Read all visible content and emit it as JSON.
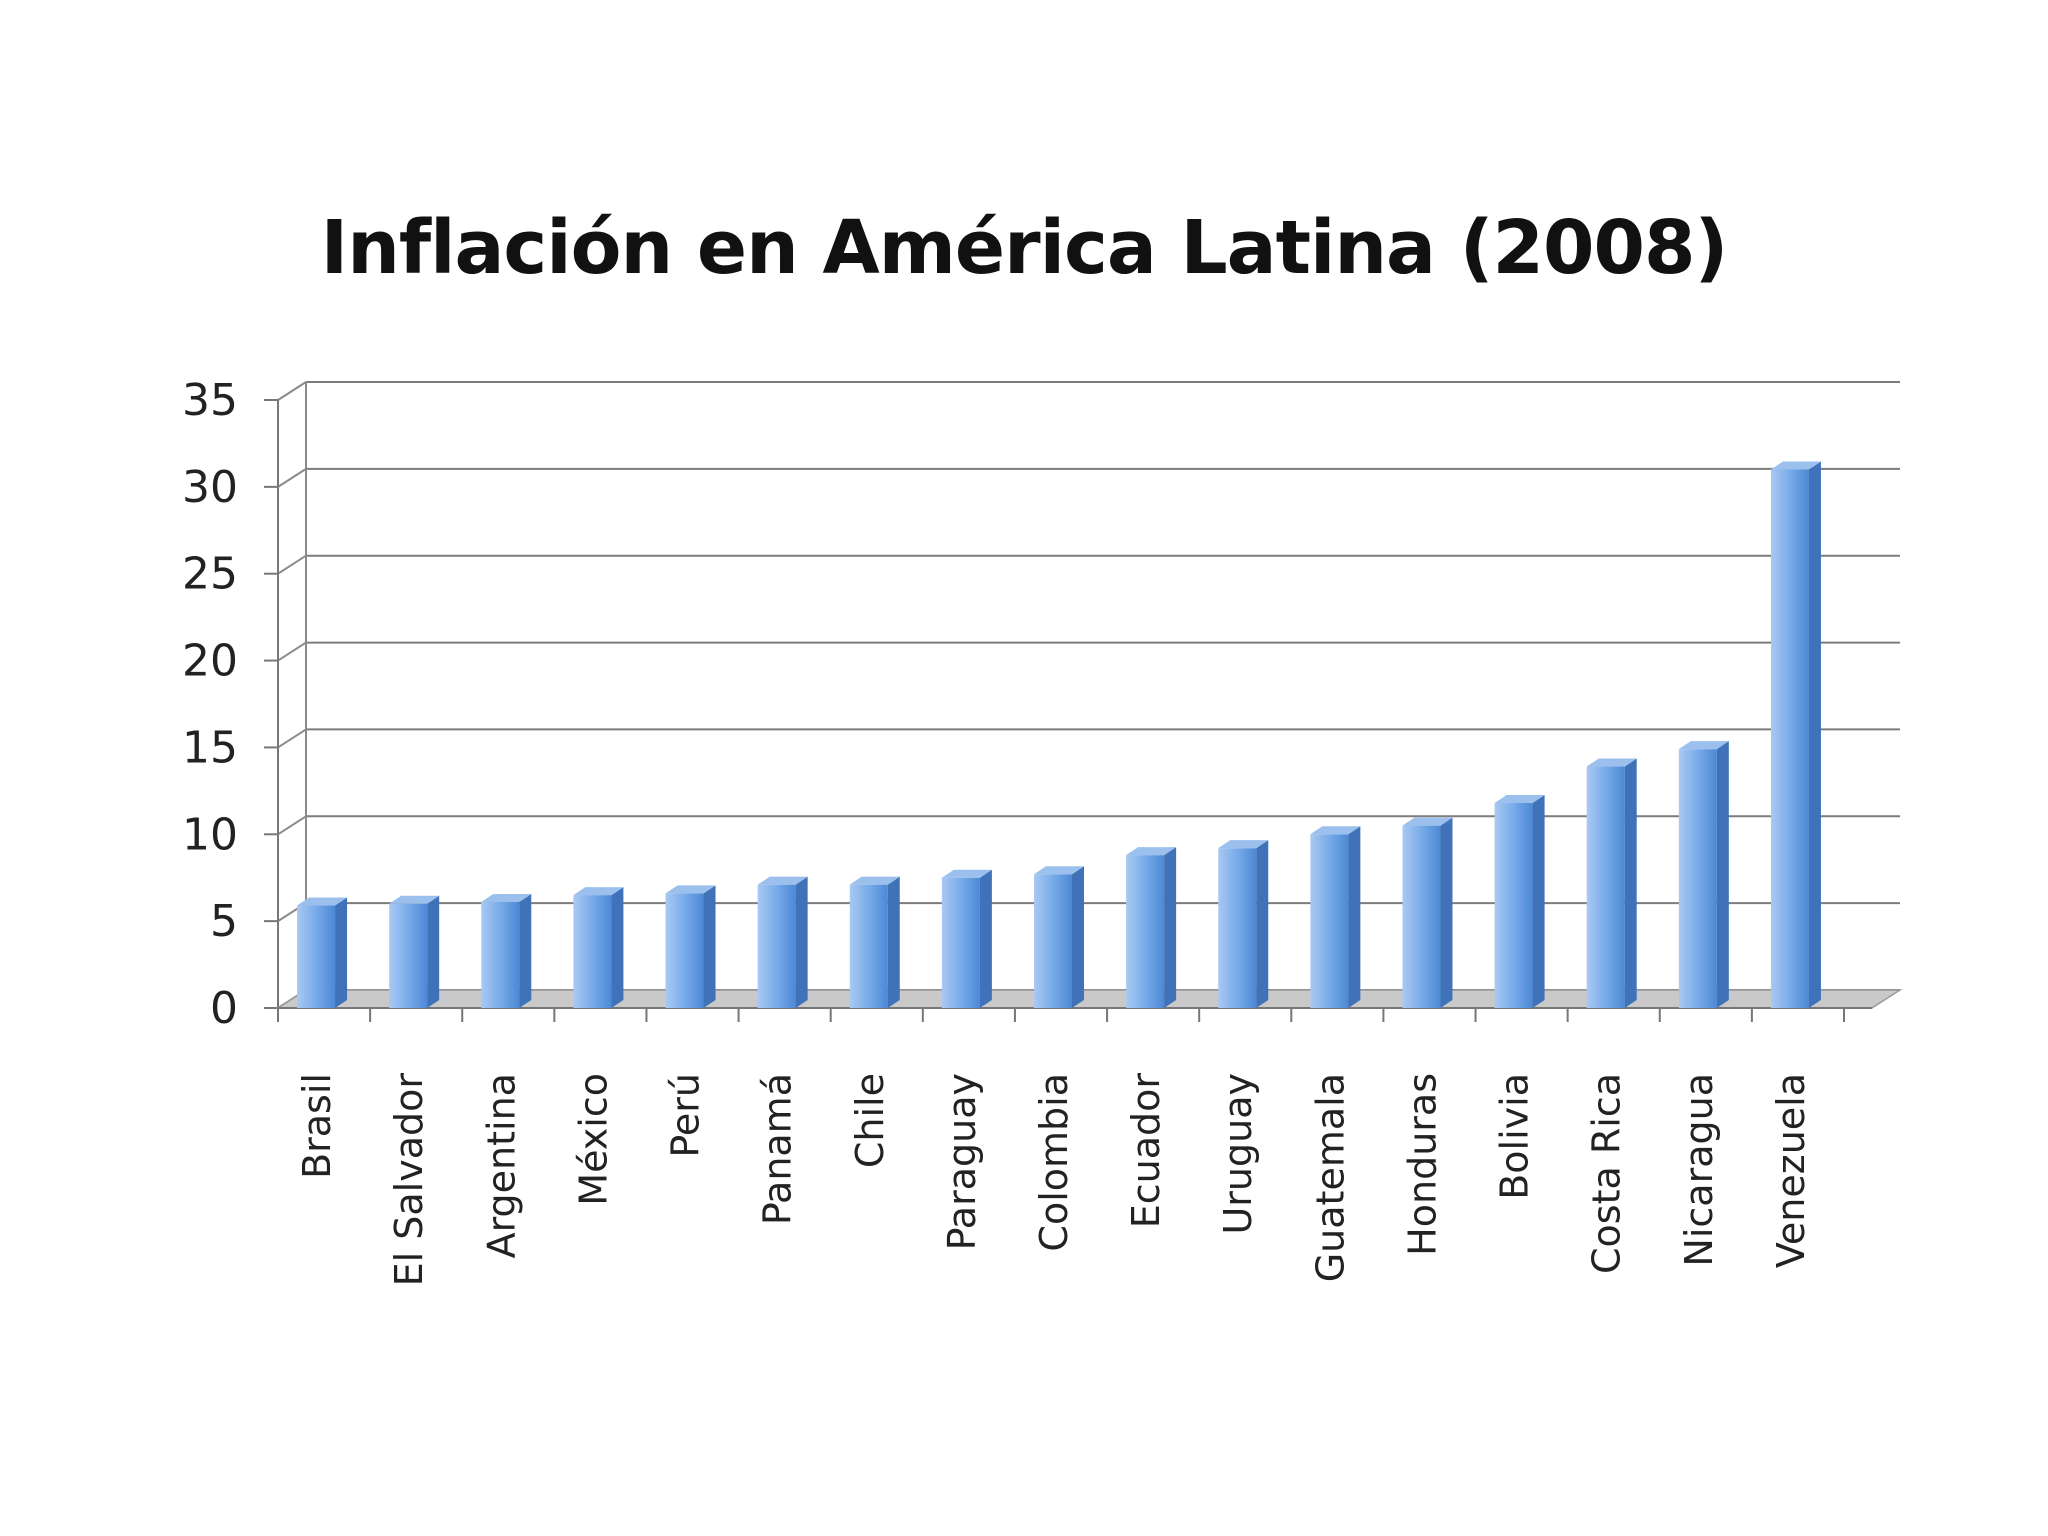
{
  "chart_data": {
    "type": "bar",
    "title": "Inflación en América Latina (2008)",
    "xlabel": "",
    "ylabel": "",
    "ylim": [
      0,
      35
    ],
    "yticks": [
      0,
      5,
      10,
      15,
      20,
      25,
      30,
      35
    ],
    "grid": true,
    "legend": "none",
    "categories": [
      "Brasil",
      "El Salvador",
      "Argentina",
      "México",
      "Perú",
      "Panamá",
      "Chile",
      "Paraguay",
      "Colombia",
      "Ecuador",
      "Uruguay",
      "Guatemala",
      "Honduras",
      "Bolivia",
      "Costa Rica",
      "Nicaragua",
      "Venezuela"
    ],
    "values": [
      5.9,
      6.0,
      6.1,
      6.5,
      6.6,
      7.1,
      7.1,
      7.5,
      7.7,
      8.8,
      9.2,
      10.0,
      10.5,
      11.8,
      13.9,
      14.9,
      31.0
    ],
    "bar_color": "#6ea5e6"
  }
}
